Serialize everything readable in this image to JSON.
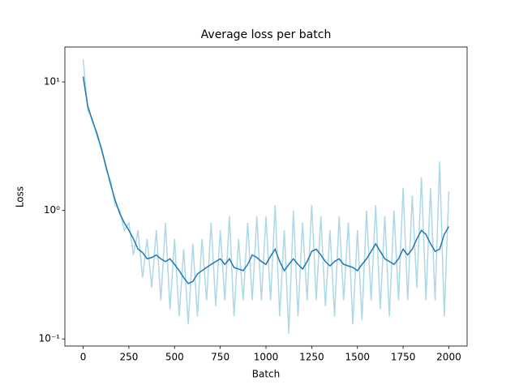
{
  "chart_data": {
    "type": "line",
    "title": "Average loss per batch",
    "x_label": "Batch",
    "y_label": "Loss",
    "yscale": "log",
    "xlim": [
      -100,
      2100
    ],
    "xticks": [
      0,
      250,
      500,
      750,
      1000,
      1250,
      1500,
      1750,
      2000
    ],
    "ylim": [
      0.088,
      18.7
    ],
    "yticks": [
      {
        "value": 0.1,
        "label": "10⁻¹"
      },
      {
        "value": 1,
        "label": "10⁰"
      },
      {
        "value": 10,
        "label": "10¹"
      }
    ],
    "grid": false,
    "x": [
      0,
      25,
      50,
      75,
      100,
      125,
      150,
      175,
      200,
      225,
      250,
      275,
      300,
      325,
      350,
      375,
      400,
      425,
      450,
      475,
      500,
      525,
      550,
      575,
      600,
      625,
      650,
      675,
      700,
      725,
      750,
      775,
      800,
      825,
      850,
      875,
      900,
      925,
      950,
      975,
      1000,
      1025,
      1050,
      1075,
      1100,
      1125,
      1150,
      1175,
      1200,
      1225,
      1250,
      1275,
      1300,
      1325,
      1350,
      1375,
      1400,
      1425,
      1450,
      1475,
      1500,
      1525,
      1550,
      1575,
      1600,
      1625,
      1650,
      1675,
      1700,
      1725,
      1750,
      1775,
      1800,
      1825,
      1850,
      1875,
      1900,
      1925,
      1950,
      1975,
      2000
    ],
    "series": [
      {
        "color": "#add8e6",
        "values": [
          15,
          6,
          5.2,
          3.8,
          3.1,
          2.1,
          1.7,
          1.1,
          1.0,
          0.7,
          0.8,
          0.45,
          0.7,
          0.3,
          0.6,
          0.25,
          0.7,
          0.2,
          0.8,
          0.17,
          0.6,
          0.15,
          0.5,
          0.13,
          0.55,
          0.15,
          0.6,
          0.2,
          0.8,
          0.18,
          0.7,
          0.2,
          0.9,
          0.15,
          0.6,
          0.2,
          0.8,
          0.2,
          0.9,
          0.2,
          0.9,
          0.2,
          1.1,
          0.15,
          0.7,
          0.11,
          1.0,
          0.15,
          0.8,
          0.2,
          1.1,
          0.2,
          0.9,
          0.18,
          0.7,
          0.15,
          0.9,
          0.2,
          0.8,
          0.13,
          0.7,
          0.14,
          1.0,
          0.2,
          1.1,
          0.17,
          0.9,
          0.15,
          1.0,
          0.2,
          1.5,
          0.2,
          1.3,
          0.25,
          1.8,
          0.2,
          1.5,
          0.2,
          2.4,
          0.15,
          1.4
        ]
      },
      {
        "color": "#1f77b4",
        "values": [
          11,
          6.5,
          5,
          4,
          3,
          2.2,
          1.6,
          1.2,
          0.95,
          0.8,
          0.7,
          0.6,
          0.5,
          0.47,
          0.42,
          0.43,
          0.45,
          0.42,
          0.4,
          0.42,
          0.38,
          0.34,
          0.3,
          0.27,
          0.28,
          0.32,
          0.34,
          0.36,
          0.38,
          0.4,
          0.42,
          0.38,
          0.42,
          0.36,
          0.35,
          0.34,
          0.38,
          0.45,
          0.43,
          0.4,
          0.38,
          0.44,
          0.5,
          0.4,
          0.34,
          0.38,
          0.42,
          0.38,
          0.35,
          0.4,
          0.48,
          0.5,
          0.45,
          0.4,
          0.37,
          0.4,
          0.42,
          0.38,
          0.37,
          0.36,
          0.34,
          0.38,
          0.42,
          0.48,
          0.55,
          0.48,
          0.42,
          0.4,
          0.38,
          0.42,
          0.5,
          0.45,
          0.5,
          0.6,
          0.7,
          0.65,
          0.55,
          0.48,
          0.5,
          0.65,
          0.75
        ]
      }
    ]
  }
}
